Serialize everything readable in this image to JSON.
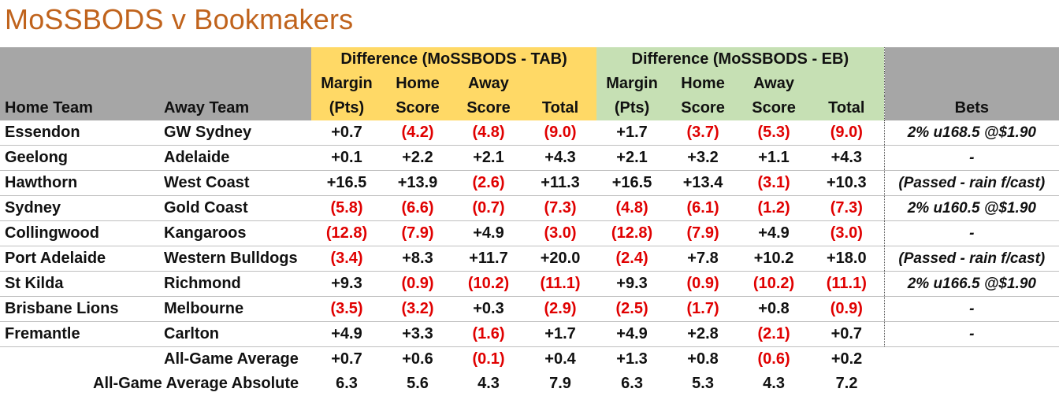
{
  "title": "MoSSBODS v Bookmakers",
  "group_headers": {
    "tab": "Difference (MoSSBODS - TAB)",
    "eb": "Difference (MoSSBODS - EB)"
  },
  "columns": {
    "home_team": "Home Team",
    "away_team": "Away Team",
    "margin_1": "Margin",
    "margin_2": "(Pts)",
    "home_1": "Home",
    "home_2": "Score",
    "away_1": "Away",
    "away_2": "Score",
    "total": "Total",
    "bets": "Bets"
  },
  "rows": [
    {
      "home": "Essendon",
      "away": "GW Sydney",
      "tab": [
        "+0.7",
        "(4.2)",
        "(4.8)",
        "(9.0)"
      ],
      "eb": [
        "+1.7",
        "(3.7)",
        "(5.3)",
        "(9.0)"
      ],
      "bets": "2% u168.5 @$1.90"
    },
    {
      "home": "Geelong",
      "away": "Adelaide",
      "tab": [
        "+0.1",
        "+2.2",
        "+2.1",
        "+4.3"
      ],
      "eb": [
        "+2.1",
        "+3.2",
        "+1.1",
        "+4.3"
      ],
      "bets": "-"
    },
    {
      "home": "Hawthorn",
      "away": "West Coast",
      "tab": [
        "+16.5",
        "+13.9",
        "(2.6)",
        "+11.3"
      ],
      "eb": [
        "+16.5",
        "+13.4",
        "(3.1)",
        "+10.3"
      ],
      "bets": "(Passed - rain f/cast)"
    },
    {
      "home": "Sydney",
      "away": "Gold Coast",
      "tab": [
        "(5.8)",
        "(6.6)",
        "(0.7)",
        "(7.3)"
      ],
      "eb": [
        "(4.8)",
        "(6.1)",
        "(1.2)",
        "(7.3)"
      ],
      "bets": "2% u160.5 @$1.90"
    },
    {
      "home": "Collingwood",
      "away": "Kangaroos",
      "tab": [
        "(12.8)",
        "(7.9)",
        "+4.9",
        "(3.0)"
      ],
      "eb": [
        "(12.8)",
        "(7.9)",
        "+4.9",
        "(3.0)"
      ],
      "bets": "-"
    },
    {
      "home": "Port Adelaide",
      "away": "Western Bulldogs",
      "tab": [
        "(3.4)",
        "+8.3",
        "+11.7",
        "+20.0"
      ],
      "eb": [
        "(2.4)",
        "+7.8",
        "+10.2",
        "+18.0"
      ],
      "bets": "(Passed - rain f/cast)"
    },
    {
      "home": "St Kilda",
      "away": "Richmond",
      "tab": [
        "+9.3",
        "(0.9)",
        "(10.2)",
        "(11.1)"
      ],
      "eb": [
        "+9.3",
        "(0.9)",
        "(10.2)",
        "(11.1)"
      ],
      "bets": "2% u166.5 @$1.90"
    },
    {
      "home": "Brisbane Lions",
      "away": "Melbourne",
      "tab": [
        "(3.5)",
        "(3.2)",
        "+0.3",
        "(2.9)"
      ],
      "eb": [
        "(2.5)",
        "(1.7)",
        "+0.8",
        "(0.9)"
      ],
      "bets": "-"
    },
    {
      "home": "Fremantle",
      "away": "Carlton",
      "tab": [
        "+4.9",
        "+3.3",
        "(1.6)",
        "+1.7"
      ],
      "eb": [
        "+4.9",
        "+2.8",
        "(2.1)",
        "+0.7"
      ],
      "bets": "-"
    }
  ],
  "footer": [
    {
      "label": "All-Game Average",
      "tab": [
        "+0.7",
        "+0.6",
        "(0.1)",
        "+0.4"
      ],
      "eb": [
        "+1.3",
        "+0.8",
        "(0.6)",
        "+0.2"
      ]
    },
    {
      "label": "All-Game Average Absolute",
      "tab": [
        "6.3",
        "5.6",
        "4.3",
        "7.9"
      ],
      "eb": [
        "6.3",
        "5.3",
        "4.3",
        "7.2"
      ]
    }
  ],
  "colors": {
    "title": "#c0631c",
    "header_grey": "#a6a6a6",
    "tab_yellow": "#ffd966",
    "eb_green": "#c6e0b4",
    "negative": "#e00000"
  }
}
